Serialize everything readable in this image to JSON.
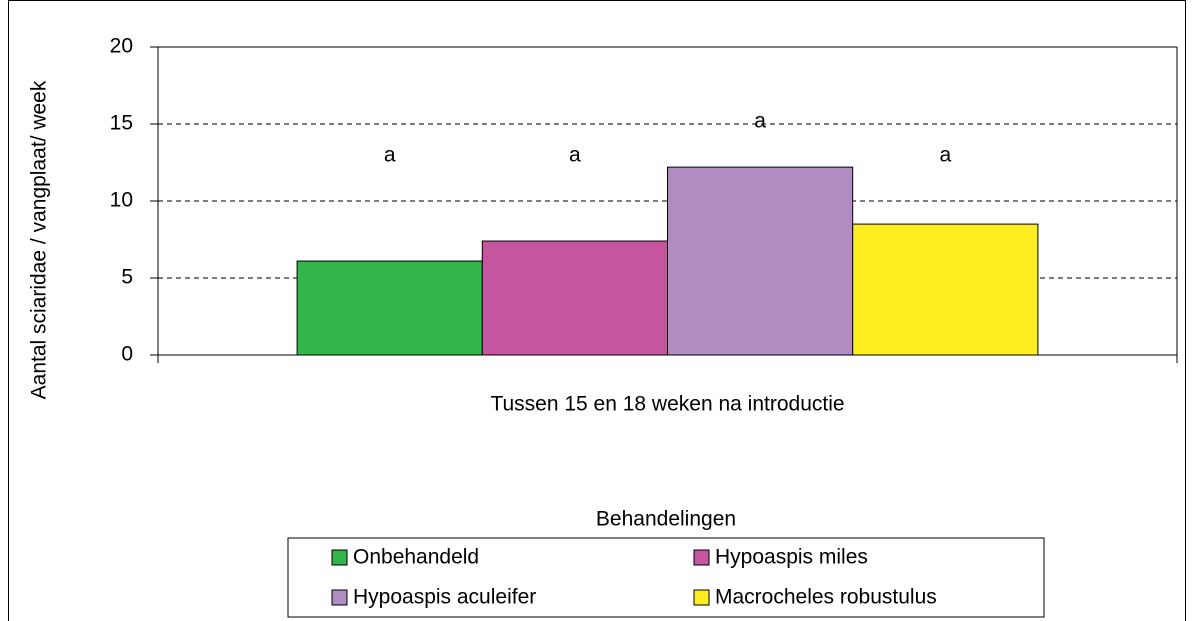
{
  "chart_data": {
    "type": "bar",
    "y_label": "Aantal sciaridae / vangplaat/ week",
    "categories": [
      "Tussen 15 en 18 weken na introductie"
    ],
    "series": [
      {
        "name": "Onbehandeld",
        "color": "#33b54a",
        "values": [
          6.1
        ],
        "significance": "a"
      },
      {
        "name": "Hypoaspis miles",
        "color": "#c4559e",
        "values": [
          7.4
        ],
        "significance": "a"
      },
      {
        "name": "Hypoaspis aculeifer",
        "color": "#b08cc2",
        "values": [
          12.2
        ],
        "significance": "a"
      },
      {
        "name": "Macrocheles robustulus",
        "color": "#fcee21",
        "values": [
          8.5
        ],
        "significance": "a"
      }
    ],
    "ylim": [
      0,
      20
    ],
    "yticks": [
      0,
      5,
      10,
      15,
      20
    ],
    "grid": true,
    "legend_title": "Behandelingen",
    "legend": "bottom"
  }
}
